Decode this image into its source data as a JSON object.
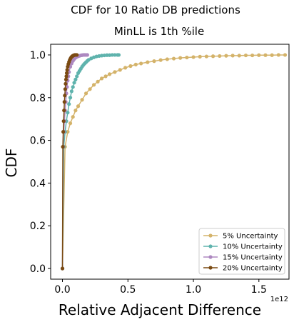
{
  "chart_data": {
    "type": "line",
    "title": "CDF for 10 Ratio DB predictions",
    "subtitle": "MinLL is 1th %ile",
    "xlabel": "Relative Adjacent Difference",
    "ylabel": "CDF",
    "x_offset_label": "1e12",
    "xlim": [
      -0.09,
      1.73
    ],
    "ylim": [
      -0.05,
      1.05
    ],
    "xticks": [
      0.0,
      0.5,
      1.0,
      1.5
    ],
    "xtick_labels": [
      "0.0",
      "0.5",
      "1.0",
      "1.5"
    ],
    "yticks": [
      0.0,
      0.2,
      0.4,
      0.6,
      0.8,
      1.0
    ],
    "ytick_labels": [
      "0.0",
      "0.2",
      "0.4",
      "0.6",
      "0.8",
      "1.0"
    ],
    "grid": false,
    "legend_position": "lower-right",
    "series": [
      {
        "name": "5% Uncertainty",
        "color": "#d4b36a",
        "x": [
          0.0,
          0.02,
          0.04,
          0.06,
          0.08,
          0.1,
          0.12,
          0.15,
          0.18,
          0.21,
          0.24,
          0.27,
          0.3,
          0.33,
          0.36,
          0.4,
          0.44,
          0.48,
          0.52,
          0.56,
          0.6,
          0.65,
          0.7,
          0.75,
          0.8,
          0.85,
          0.9,
          0.95,
          1.0,
          1.05,
          1.1,
          1.15,
          1.2,
          1.25,
          1.3,
          1.35,
          1.4,
          1.45,
          1.5,
          1.55,
          1.6,
          1.65,
          1.7
        ],
        "y": [
          0.0,
          0.57,
          0.64,
          0.68,
          0.71,
          0.74,
          0.76,
          0.79,
          0.82,
          0.84,
          0.86,
          0.875,
          0.89,
          0.9,
          0.91,
          0.92,
          0.93,
          0.94,
          0.948,
          0.955,
          0.96,
          0.966,
          0.971,
          0.976,
          0.98,
          0.983,
          0.986,
          0.988,
          0.99,
          0.992,
          0.993,
          0.994,
          0.995,
          0.996,
          0.997,
          0.997,
          0.998,
          0.998,
          0.999,
          0.999,
          0.999,
          1.0,
          1.0
        ]
      },
      {
        "name": "10% Uncertainty",
        "color": "#5fb3ad",
        "x": [
          0.0,
          0.01,
          0.02,
          0.03,
          0.04,
          0.05,
          0.06,
          0.07,
          0.08,
          0.09,
          0.1,
          0.11,
          0.12,
          0.13,
          0.14,
          0.15,
          0.16,
          0.17,
          0.18,
          0.19,
          0.2,
          0.22,
          0.24,
          0.26,
          0.28,
          0.3,
          0.32,
          0.34,
          0.36,
          0.38,
          0.4,
          0.42,
          0.43
        ],
        "y": [
          0.0,
          0.57,
          0.64,
          0.69,
          0.73,
          0.77,
          0.8,
          0.83,
          0.85,
          0.87,
          0.885,
          0.9,
          0.915,
          0.925,
          0.935,
          0.945,
          0.953,
          0.96,
          0.966,
          0.972,
          0.977,
          0.984,
          0.989,
          0.993,
          0.995,
          0.997,
          0.998,
          0.999,
          0.999,
          1.0,
          1.0,
          1.0,
          1.0
        ]
      },
      {
        "name": "15% Uncertainty",
        "color": "#ad88c0",
        "x": [
          0.0,
          0.005,
          0.01,
          0.015,
          0.02,
          0.025,
          0.03,
          0.035,
          0.04,
          0.045,
          0.05,
          0.06,
          0.07,
          0.08,
          0.09,
          0.1,
          0.11,
          0.12,
          0.13,
          0.14,
          0.15,
          0.16,
          0.17,
          0.18,
          0.19
        ],
        "y": [
          0.0,
          0.57,
          0.64,
          0.69,
          0.74,
          0.78,
          0.82,
          0.85,
          0.88,
          0.9,
          0.92,
          0.945,
          0.96,
          0.972,
          0.981,
          0.987,
          0.991,
          0.994,
          0.996,
          0.998,
          0.999,
          1.0,
          1.0,
          1.0,
          1.0
        ]
      },
      {
        "name": "20% Uncertainty",
        "color": "#7a4a12",
        "x": [
          0.0,
          0.003,
          0.006,
          0.009,
          0.012,
          0.015,
          0.018,
          0.021,
          0.024,
          0.027,
          0.03,
          0.033,
          0.036,
          0.04,
          0.045,
          0.05,
          0.055,
          0.06,
          0.065,
          0.07,
          0.075,
          0.08,
          0.085,
          0.09,
          0.095,
          0.1,
          0.105,
          0.11
        ],
        "y": [
          0.0,
          0.57,
          0.64,
          0.69,
          0.74,
          0.78,
          0.81,
          0.84,
          0.865,
          0.885,
          0.9,
          0.915,
          0.93,
          0.945,
          0.957,
          0.967,
          0.975,
          0.982,
          0.987,
          0.991,
          0.994,
          0.996,
          0.998,
          0.999,
          1.0,
          1.0,
          1.0,
          1.0
        ]
      }
    ]
  }
}
